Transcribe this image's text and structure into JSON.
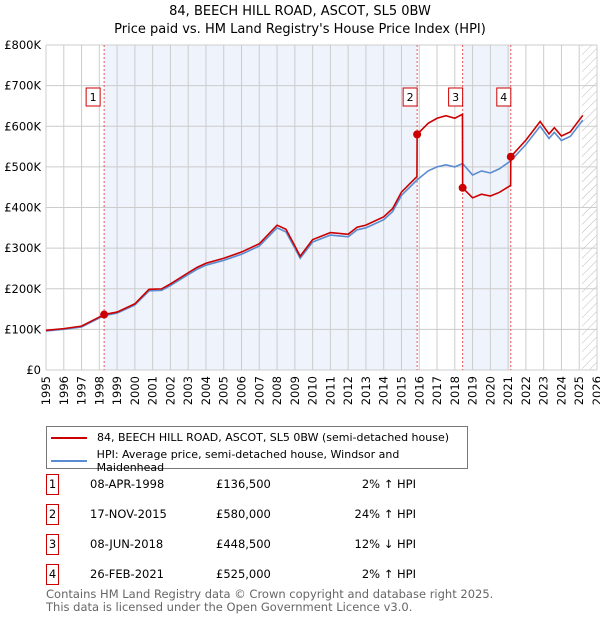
{
  "title": "84, BEECH HILL ROAD, ASCOT, SL5 0BW",
  "subtitle": "Price paid vs. HM Land Registry's House Price Index (HPI)",
  "legend": {
    "property": "84, BEECH HILL ROAD, ASCOT, SL5 0BW (semi-detached house)",
    "hpi": "HPI: Average price, semi-detached house, Windsor and Maidenhead"
  },
  "sales": [
    {
      "num": "1",
      "date": "08-APR-1998",
      "price": "£136,500",
      "delta": "2% ↑ HPI"
    },
    {
      "num": "2",
      "date": "17-NOV-2015",
      "price": "£580,000",
      "delta": "24% ↑ HPI"
    },
    {
      "num": "3",
      "date": "08-JUN-2018",
      "price": "£448,500",
      "delta": "12% ↓ HPI"
    },
    {
      "num": "4",
      "date": "26-FEB-2021",
      "price": "£525,000",
      "delta": "2% ↑ HPI"
    }
  ],
  "footer": [
    "Contains HM Land Registry data © Crown copyright and database right 2025.",
    "This data is licensed under the Open Government Licence v3.0."
  ],
  "chart_data": {
    "type": "line",
    "xlim": [
      1995,
      2026
    ],
    "ylim": [
      0,
      800000
    ],
    "yticks": [
      "£0",
      "£100K",
      "£200K",
      "£300K",
      "£400K",
      "£500K",
      "£600K",
      "£700K",
      "£800K"
    ],
    "xticks": [
      "1995",
      "1996",
      "1997",
      "1998",
      "1999",
      "2000",
      "2001",
      "2002",
      "2003",
      "2004",
      "2005",
      "2006",
      "2007",
      "2008",
      "2009",
      "2010",
      "2011",
      "2012",
      "2013",
      "2014",
      "2015",
      "2016",
      "2017",
      "2018",
      "2019",
      "2020",
      "2021",
      "2022",
      "2023",
      "2024",
      "2025",
      "2026"
    ],
    "sale_points": [
      {
        "x": 1998.27,
        "y": 136500
      },
      {
        "x": 2015.88,
        "y": 580000
      },
      {
        "x": 2018.44,
        "y": 448500
      },
      {
        "x": 2021.15,
        "y": 525000
      }
    ],
    "hpi_series": {
      "name": "HPI",
      "x": [
        1995,
        1996,
        1997,
        1998,
        1998.27,
        1999,
        2000,
        2000.8,
        2001.5,
        2002,
        2003,
        2003.5,
        2004,
        2005,
        2006,
        2007,
        2008,
        2008.5,
        2009,
        2009.3,
        2010,
        2011,
        2012,
        2012.5,
        2013,
        2014,
        2014.5,
        2015,
        2015.88,
        2016.5,
        2017,
        2017.5,
        2018,
        2018.44,
        2019,
        2019.5,
        2020,
        2020.5,
        2021.15,
        2022,
        2022.8,
        2023.3,
        2023.6,
        2024,
        2024.5,
        2025.2
      ],
      "y": [
        96000,
        100000,
        106000,
        128000,
        134000,
        140000,
        160000,
        195000,
        196000,
        208000,
        235000,
        248000,
        258000,
        270000,
        285000,
        305000,
        350000,
        340000,
        300000,
        275000,
        315000,
        332000,
        328000,
        345000,
        350000,
        370000,
        390000,
        430000,
        468000,
        490000,
        500000,
        505000,
        500000,
        508000,
        480000,
        490000,
        485000,
        495000,
        515000,
        555000,
        600000,
        570000,
        585000,
        565000,
        575000,
        615000
      ]
    },
    "colors": {
      "property": "#cc0000",
      "hpi": "#5b8bd0",
      "shade": "#eef3fc"
    }
  }
}
